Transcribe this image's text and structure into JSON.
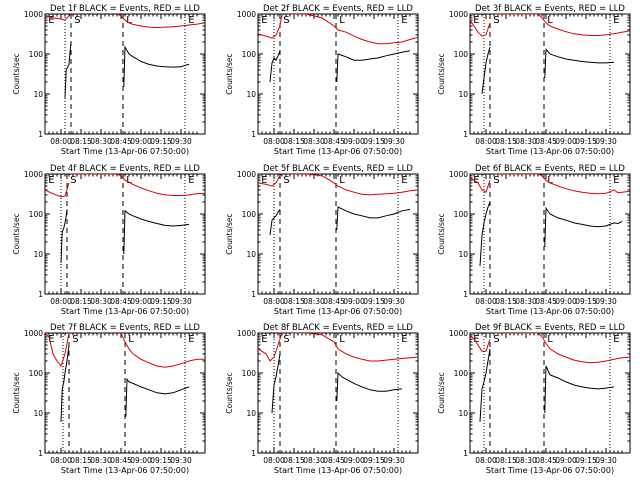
{
  "figure": {
    "colors": {
      "events": "#000000",
      "lld": "#e00000",
      "axis": "#000000"
    },
    "marker_labels": [
      "E",
      "S",
      "L",
      "E"
    ]
  },
  "chart_data": [
    {
      "type": "line",
      "title": "Det 1f BLACK = Events, RED = LLD",
      "xlabel": "Start Time (13-Apr-06 07:50:00)",
      "ylabel": "Counts/sec",
      "xlim": [
        6,
        46
      ],
      "ylim": [
        1,
        1000
      ],
      "yscale": "log",
      "x_tick_labels": [
        "08:00",
        "08:15",
        "08:30",
        "08:45",
        "09:00",
        "09:15",
        "09:30"
      ],
      "y_tick_labels": [
        "1",
        "10",
        "100",
        "1000"
      ],
      "dotted_lines": [
        11,
        41
      ],
      "dashed_lines": [
        12.5,
        25.5
      ],
      "series": [
        {
          "name": "Events",
          "x": [
            11,
            11.3,
            11.6,
            12,
            12.3,
            12.5,
            25.7,
            26,
            27,
            28,
            29,
            30,
            32,
            34,
            36,
            38,
            40,
            41,
            42
          ],
          "y": [
            8,
            40,
            45,
            55,
            120,
            200,
            15,
            150,
            100,
            85,
            75,
            65,
            55,
            50,
            48,
            47,
            48,
            52,
            55
          ]
        },
        {
          "name": "LLD",
          "x": [
            6,
            8,
            10,
            11,
            12,
            13,
            24,
            25,
            26,
            27,
            28,
            30,
            32,
            34,
            36,
            38,
            40,
            42,
            44,
            46
          ],
          "y": [
            900,
            800,
            750,
            700,
            900,
            1000,
            1000,
            900,
            700,
            600,
            550,
            500,
            470,
            460,
            470,
            480,
            500,
            530,
            560,
            600
          ]
        }
      ]
    },
    {
      "type": "line",
      "title": "Det 2f BLACK = Events, RED = LLD",
      "xlabel": "Start Time (13-Apr-06 07:50:00)",
      "ylabel": "Counts/sec",
      "xlim": [
        6,
        46
      ],
      "ylim": [
        1,
        1000
      ],
      "yscale": "log",
      "x_tick_labels": [
        "08:00",
        "08:15",
        "08:30",
        "08:45",
        "09:00",
        "09:15",
        "09:30"
      ],
      "y_tick_labels": [
        "1",
        "10",
        "100",
        "1000"
      ],
      "dotted_lines": [
        10,
        41
      ],
      "dashed_lines": [
        11.5,
        25.5
      ],
      "series": [
        {
          "name": "Events",
          "x": [
            9,
            9.5,
            10,
            10.5,
            11,
            11.5,
            25.7,
            26,
            28,
            30,
            32,
            34,
            36,
            38,
            40,
            42,
            44
          ],
          "y": [
            20,
            60,
            80,
            70,
            90,
            120,
            20,
            100,
            85,
            70,
            70,
            75,
            80,
            90,
            100,
            110,
            120
          ]
        },
        {
          "name": "LLD",
          "x": [
            6,
            8,
            9.5,
            10.5,
            11.5,
            12,
            14,
            18,
            22,
            25,
            26,
            28,
            30,
            32,
            34,
            36,
            38,
            40,
            42,
            44,
            46
          ],
          "y": [
            320,
            280,
            250,
            300,
            500,
            1000,
            1000,
            1000,
            800,
            500,
            400,
            350,
            280,
            230,
            200,
            180,
            180,
            190,
            200,
            230,
            260
          ]
        }
      ]
    },
    {
      "type": "line",
      "title": "Det 3f BLACK = Events, RED = LLD",
      "xlabel": "Start Time (13-Apr-06 07:50:00)",
      "ylabel": "Counts/sec",
      "xlim": [
        6,
        46
      ],
      "ylim": [
        1,
        1000
      ],
      "yscale": "log",
      "x_tick_labels": [
        "08:00",
        "08:15",
        "08:30",
        "08:45",
        "09:00",
        "09:15",
        "09:30"
      ],
      "y_tick_labels": [
        "1",
        "10",
        "100",
        "1000"
      ],
      "dotted_lines": [
        9.5,
        41
      ],
      "dashed_lines": [
        11,
        24.5
      ],
      "series": [
        {
          "name": "Events",
          "x": [
            9,
            9.5,
            10,
            10.5,
            11,
            24.7,
            25,
            26,
            28,
            30,
            32,
            34,
            36,
            38,
            40,
            42
          ],
          "y": [
            10,
            25,
            60,
            100,
            150,
            25,
            130,
            100,
            85,
            75,
            70,
            65,
            62,
            60,
            60,
            62
          ]
        },
        {
          "name": "LLD",
          "x": [
            6,
            7,
            8,
            9,
            10,
            11,
            12,
            23,
            24,
            25,
            26,
            28,
            30,
            32,
            34,
            36,
            38,
            40,
            42,
            44,
            46
          ],
          "y": [
            700,
            500,
            350,
            280,
            300,
            600,
            1000,
            1000,
            800,
            600,
            500,
            420,
            360,
            320,
            300,
            290,
            290,
            300,
            320,
            350,
            380
          ]
        }
      ]
    },
    {
      "type": "line",
      "title": "Det 4f BLACK = Events, RED = LLD",
      "xlabel": "Start Time (13-Apr-06 07:50:00)",
      "ylabel": "Counts/sec",
      "xlim": [
        6,
        46
      ],
      "ylim": [
        1,
        1000
      ],
      "yscale": "log",
      "x_tick_labels": [
        "08:00",
        "08:15",
        "08:30",
        "08:45",
        "09:00",
        "09:15",
        "09:30"
      ],
      "y_tick_labels": [
        "1",
        "10",
        "100",
        "1000"
      ],
      "dotted_lines": [
        10,
        41
      ],
      "dashed_lines": [
        11.5,
        25.5
      ],
      "series": [
        {
          "name": "Events",
          "x": [
            10,
            10.3,
            10.7,
            11,
            11.3,
            11.5,
            25.7,
            26,
            27,
            28,
            30,
            32,
            34,
            36,
            38,
            40,
            42
          ],
          "y": [
            6,
            35,
            45,
            60,
            90,
            130,
            10,
            120,
            100,
            90,
            75,
            65,
            58,
            52,
            50,
            52,
            55
          ]
        },
        {
          "name": "LLD",
          "x": [
            6,
            8,
            10,
            11,
            12,
            13,
            24,
            25,
            26,
            28,
            30,
            32,
            34,
            36,
            38,
            40,
            42,
            44,
            46
          ],
          "y": [
            400,
            320,
            270,
            280,
            600,
            1000,
            1000,
            900,
            700,
            550,
            450,
            380,
            330,
            300,
            290,
            290,
            300,
            320,
            330
          ]
        }
      ]
    },
    {
      "type": "line",
      "title": "Det 5f BLACK = Events, RED = LLD",
      "xlabel": "Start Time (13-Apr-06 07:50:00)",
      "ylabel": "Counts/sec",
      "xlim": [
        6,
        46
      ],
      "ylim": [
        1,
        1000
      ],
      "yscale": "log",
      "x_tick_labels": [
        "08:00",
        "08:15",
        "08:30",
        "08:45",
        "09:00",
        "09:15",
        "09:30"
      ],
      "y_tick_labels": [
        "1",
        "10",
        "100",
        "1000"
      ],
      "dotted_lines": [
        10,
        41
      ],
      "dashed_lines": [
        11.5,
        25.5
      ],
      "series": [
        {
          "name": "Events",
          "x": [
            9,
            9.5,
            10,
            10.5,
            11,
            11.5,
            25.7,
            26,
            28,
            30,
            32,
            34,
            36,
            38,
            40,
            42,
            44
          ],
          "y": [
            30,
            70,
            80,
            90,
            110,
            130,
            40,
            150,
            120,
            100,
            90,
            80,
            80,
            90,
            100,
            120,
            130
          ]
        },
        {
          "name": "LLD",
          "x": [
            6,
            8,
            9.5,
            10.5,
            11.5,
            12,
            14,
            16,
            18,
            20,
            22,
            24,
            26,
            28,
            30,
            32,
            34,
            36,
            38,
            40,
            42,
            44,
            46
          ],
          "y": [
            600,
            550,
            500,
            600,
            900,
            1000,
            1000,
            1000,
            1000,
            950,
            900,
            700,
            500,
            400,
            350,
            310,
            300,
            310,
            320,
            330,
            350,
            380,
            400
          ]
        }
      ]
    },
    {
      "type": "line",
      "title": "Det 6f BLACK = Events, RED = LLD",
      "xlabel": "Start Time (13-Apr-06 07:50:00)",
      "ylabel": "Counts/sec",
      "xlim": [
        6,
        46
      ],
      "ylim": [
        1,
        1000
      ],
      "yscale": "log",
      "x_tick_labels": [
        "08:00",
        "08:15",
        "08:30",
        "08:45",
        "09:00",
        "09:15",
        "09:30"
      ],
      "y_tick_labels": [
        "1",
        "10",
        "100",
        "1000"
      ],
      "dotted_lines": [
        9.5,
        41
      ],
      "dashed_lines": [
        11,
        24.5
      ],
      "series": [
        {
          "name": "Events",
          "x": [
            8.5,
            9,
            9.5,
            10,
            10.5,
            11,
            24.7,
            25,
            26,
            28,
            30,
            32,
            34,
            36,
            38,
            40,
            41,
            42,
            43,
            44
          ],
          "y": [
            5,
            30,
            60,
            100,
            150,
            200,
            15,
            140,
            100,
            80,
            70,
            60,
            55,
            50,
            48,
            50,
            55,
            60,
            58,
            65
          ]
        },
        {
          "name": "LLD",
          "x": [
            6,
            7,
            8,
            9,
            10,
            11,
            12,
            23,
            24,
            25,
            26,
            28,
            30,
            32,
            34,
            36,
            38,
            40,
            41,
            42,
            43,
            44,
            46
          ],
          "y": [
            800,
            700,
            600,
            400,
            350,
            700,
            1000,
            1000,
            900,
            700,
            600,
            500,
            430,
            380,
            350,
            330,
            320,
            330,
            360,
            400,
            340,
            350,
            370
          ]
        }
      ]
    },
    {
      "type": "line",
      "title": "Det 7f BLACK = Events, RED = LLD",
      "xlabel": "Start Time (13-Apr-06 07:50:00)",
      "ylabel": "Counts/sec",
      "xlim": [
        6,
        46
      ],
      "ylim": [
        1,
        1000
      ],
      "yscale": "log",
      "x_tick_labels": [
        "08:00",
        "08:15",
        "08:30",
        "08:45",
        "09:00",
        "09:15",
        "09:30"
      ],
      "y_tick_labels": [
        "1",
        "10",
        "100",
        "1000"
      ],
      "dotted_lines": [
        10.5,
        41
      ],
      "dashed_lines": [
        12,
        26
      ],
      "series": [
        {
          "name": "Events",
          "x": [
            10,
            10.3,
            10.7,
            11,
            11.5,
            12,
            26.2,
            26.5,
            27,
            28,
            30,
            32,
            34,
            36,
            38,
            40,
            42
          ],
          "y": [
            6,
            40,
            60,
            100,
            200,
            500,
            8,
            70,
            60,
            55,
            45,
            38,
            32,
            30,
            32,
            38,
            45
          ]
        },
        {
          "name": "LLD",
          "x": [
            6,
            7,
            8,
            9,
            10,
            11,
            12,
            25,
            26,
            27,
            28,
            30,
            32,
            34,
            36,
            38,
            40,
            42,
            44,
            46
          ],
          "y": [
            1000,
            800,
            300,
            200,
            150,
            300,
            1000,
            1000,
            600,
            400,
            300,
            220,
            180,
            150,
            140,
            150,
            170,
            200,
            220,
            220
          ]
        }
      ]
    },
    {
      "type": "line",
      "title": "Det 8f BLACK = Events, RED = LLD",
      "xlabel": "Start Time (13-Apr-06 07:50:00)",
      "ylabel": "Counts/sec",
      "xlim": [
        6,
        46
      ],
      "ylim": [
        1,
        1000
      ],
      "yscale": "log",
      "x_tick_labels": [
        "08:00",
        "08:15",
        "08:30",
        "08:45",
        "09:00",
        "09:15",
        "09:30"
      ],
      "y_tick_labels": [
        "1",
        "10",
        "100",
        "1000"
      ],
      "dotted_lines": [
        10,
        41
      ],
      "dashed_lines": [
        11.5,
        25.5
      ],
      "series": [
        {
          "name": "Events",
          "x": [
            9.5,
            10,
            10.5,
            11,
            11.5,
            25.7,
            26,
            27,
            28,
            30,
            32,
            34,
            36,
            38,
            40,
            42
          ],
          "y": [
            10,
            50,
            80,
            150,
            300,
            20,
            100,
            80,
            70,
            55,
            45,
            38,
            35,
            35,
            38,
            40
          ]
        },
        {
          "name": "LLD",
          "x": [
            6,
            8,
            9,
            10,
            11,
            12,
            14,
            18,
            22,
            25,
            26,
            28,
            30,
            32,
            34,
            36,
            38,
            40,
            42,
            44,
            46
          ],
          "y": [
            400,
            300,
            200,
            250,
            500,
            1000,
            1000,
            1000,
            900,
            600,
            400,
            300,
            250,
            220,
            200,
            200,
            210,
            220,
            230,
            240,
            250
          ]
        }
      ]
    },
    {
      "type": "line",
      "title": "Det 9f BLACK = Events, RED = LLD",
      "xlabel": "Start Time (13-Apr-06 07:50:00)",
      "ylabel": "Counts/sec",
      "xlim": [
        6,
        46
      ],
      "ylim": [
        1,
        1000
      ],
      "yscale": "log",
      "x_tick_labels": [
        "08:00",
        "08:15",
        "08:30",
        "08:45",
        "09:00",
        "09:15",
        "09:30"
      ],
      "y_tick_labels": [
        "1",
        "10",
        "100",
        "1000"
      ],
      "dotted_lines": [
        9.5,
        41
      ],
      "dashed_lines": [
        11,
        24.5
      ],
      "series": [
        {
          "name": "Events",
          "x": [
            8.5,
            9,
            9.5,
            10,
            10.5,
            11,
            24.7,
            25,
            26,
            28,
            30,
            32,
            34,
            36,
            38,
            40,
            42
          ],
          "y": [
            6,
            40,
            60,
            100,
            200,
            400,
            10,
            150,
            90,
            75,
            60,
            50,
            45,
            42,
            40,
            42,
            45
          ]
        },
        {
          "name": "LLD",
          "x": [
            6,
            7,
            8,
            9,
            10,
            11,
            12,
            23,
            24,
            25,
            26,
            28,
            30,
            32,
            34,
            36,
            38,
            40,
            42,
            44,
            46
          ],
          "y": [
            900,
            700,
            500,
            350,
            350,
            700,
            1000,
            1000,
            800,
            550,
            400,
            300,
            250,
            210,
            190,
            180,
            185,
            200,
            220,
            240,
            250
          ]
        }
      ]
    }
  ]
}
